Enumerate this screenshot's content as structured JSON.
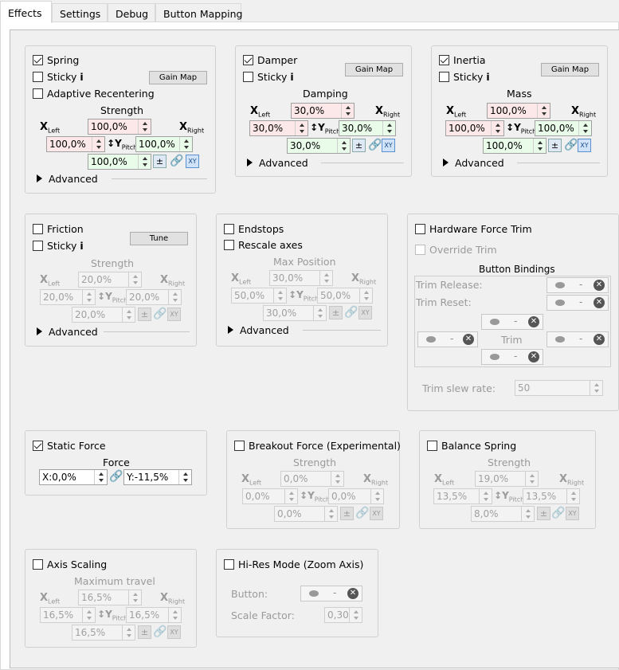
{
  "tabs": [
    "Effects",
    "Settings",
    "Debug",
    "Button Mapping"
  ],
  "spring": {
    "check": "Spring",
    "sticky": "Sticky",
    "adaptive": "Adaptive Recentering",
    "gain": "Gain Map",
    "title": "Strength",
    "y": "100,0%",
    "xl": "100,0%",
    "xr": "100,0%",
    "c": "100,0%",
    "adv": "Advanced"
  },
  "damper": {
    "check": "Damper",
    "sticky": "Sticky",
    "gain": "Gain Map",
    "title": "Damping",
    "y": "30,0%",
    "xl": "30,0%",
    "xr": "30,0%",
    "c": "30,0%",
    "adv": "Advanced"
  },
  "inertia": {
    "check": "Inertia",
    "sticky": "Sticky",
    "gain": "Gain Map",
    "title": "Mass",
    "y": "100,0%",
    "xl": "100,0%",
    "xr": "100,0%",
    "c": "100,0%",
    "adv": "Advanced"
  },
  "friction": {
    "check": "Friction",
    "sticky": "Sticky",
    "tune": "Tune",
    "title": "Strength",
    "y": "20,0%",
    "xl": "20,0%",
    "xr": "20,0%",
    "c": "20,0%",
    "adv": "Advanced"
  },
  "endstops": {
    "check": "Endstops",
    "rescale": "Rescale axes",
    "title": "Max Position",
    "y": "30,0%",
    "xl": "50,0%",
    "xr": "50,0%",
    "c": "30,0%",
    "adv": "Advanced"
  },
  "hwtrim": {
    "check": "Hardware Force Trim",
    "override": "Override Trim",
    "bindings": "Button Bindings",
    "release": "Trim Release:",
    "reset": "Trim Reset:",
    "trim": "Trim",
    "slew": "Trim slew rate:",
    "slew_val": "50",
    "dash": "-"
  },
  "static": {
    "check": "Static Force",
    "title": "Force",
    "x": "X:0,0%",
    "y": "Y:-11,5%"
  },
  "breakout": {
    "check": "Breakout Force (Experimental)",
    "title": "Strength",
    "y": "0,0%",
    "xl": "0,0%",
    "xr": "0,0%",
    "c": "0,0%"
  },
  "balance": {
    "check": "Balance Spring",
    "title": "Strength",
    "y": "19,0%",
    "xl": "13,5%",
    "xr": "13,5%",
    "c": "8,0%"
  },
  "axis": {
    "check": "Axis Scaling",
    "title": "Maximum travel",
    "y": "16,5%",
    "xl": "16,5%",
    "xr": "16,5%",
    "c": "16,5%"
  },
  "hires": {
    "check": "Hi-Res Mode (Zoom Axis)",
    "button": "Button:",
    "scale": "Scale Factor:",
    "scale_val": "0,30",
    "dash": "-"
  },
  "labels": {
    "x": "X",
    "left": "Left",
    "right": "Right",
    "y": "Y",
    "pitch": "Pitch",
    "pm": "±",
    "xy": "XY",
    "info": "i",
    "link": "🔗"
  }
}
